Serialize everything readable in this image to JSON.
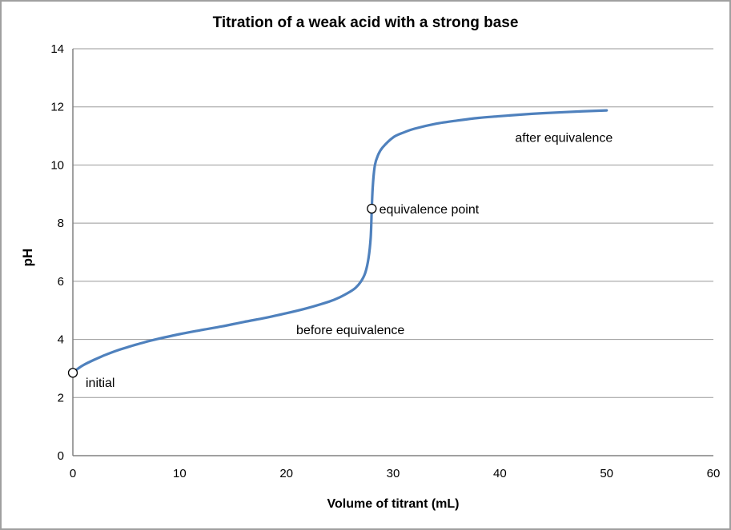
{
  "figure": {
    "background": "#ffffff",
    "border_color": "#a0a0a0"
  },
  "chart_data": {
    "type": "line",
    "title": "Titration of a weak acid with a strong base",
    "xlabel": "Volume of titrant (mL)",
    "ylabel": "pH",
    "xlim": [
      0,
      60
    ],
    "ylim": [
      0,
      14
    ],
    "x_ticks": [
      0,
      10,
      20,
      30,
      40,
      50,
      60
    ],
    "y_ticks": [
      0,
      2,
      4,
      6,
      8,
      10,
      12,
      14
    ],
    "grid": "horizontal-major",
    "legend": "none",
    "line_color": "#4F81BD",
    "gridline_color": "#999999",
    "axis_color": "#808080",
    "text_color": "#000000",
    "marker_fill": "#ffffff",
    "marker_stroke": "#000000",
    "series": [
      {
        "name": "titration curve",
        "points": [
          [
            0,
            2.85
          ],
          [
            0.5,
            3.0
          ],
          [
            1,
            3.12
          ],
          [
            2,
            3.3
          ],
          [
            3,
            3.46
          ],
          [
            4,
            3.6
          ],
          [
            5,
            3.72
          ],
          [
            6,
            3.83
          ],
          [
            7,
            3.93
          ],
          [
            8,
            4.02
          ],
          [
            10,
            4.18
          ],
          [
            12,
            4.32
          ],
          [
            14,
            4.45
          ],
          [
            16,
            4.6
          ],
          [
            18,
            4.74
          ],
          [
            20,
            4.9
          ],
          [
            22,
            5.08
          ],
          [
            24,
            5.3
          ],
          [
            25,
            5.45
          ],
          [
            26,
            5.65
          ],
          [
            26.5,
            5.78
          ],
          [
            27,
            6.0
          ],
          [
            27.4,
            6.3
          ],
          [
            27.7,
            6.8
          ],
          [
            27.9,
            7.5
          ],
          [
            28,
            8.5
          ],
          [
            28.1,
            9.3
          ],
          [
            28.3,
            10.0
          ],
          [
            28.6,
            10.35
          ],
          [
            29,
            10.6
          ],
          [
            30,
            10.95
          ],
          [
            31,
            11.12
          ],
          [
            32,
            11.25
          ],
          [
            34,
            11.42
          ],
          [
            36,
            11.53
          ],
          [
            38,
            11.62
          ],
          [
            40,
            11.68
          ],
          [
            43,
            11.76
          ],
          [
            46,
            11.82
          ],
          [
            50,
            11.88
          ]
        ]
      }
    ],
    "markers": [
      {
        "name": "initial-point",
        "v": 0,
        "ph": 2.85
      },
      {
        "name": "equivalence-point",
        "v": 28,
        "ph": 8.5
      }
    ],
    "annotations": [
      {
        "name": "initial",
        "text": "initial",
        "v": 1.2,
        "ph": 2.37,
        "anchor": "start"
      },
      {
        "name": "before-equivalence",
        "text": "before equivalence",
        "v": 26.0,
        "ph": 4.18,
        "anchor": "middle"
      },
      {
        "name": "equivalence-point",
        "text": "equivalence point",
        "v": 28.7,
        "ph": 8.33,
        "anchor": "start"
      },
      {
        "name": "after-equivalence",
        "text": "after equivalence",
        "v": 46.0,
        "ph": 10.8,
        "anchor": "middle"
      }
    ]
  }
}
